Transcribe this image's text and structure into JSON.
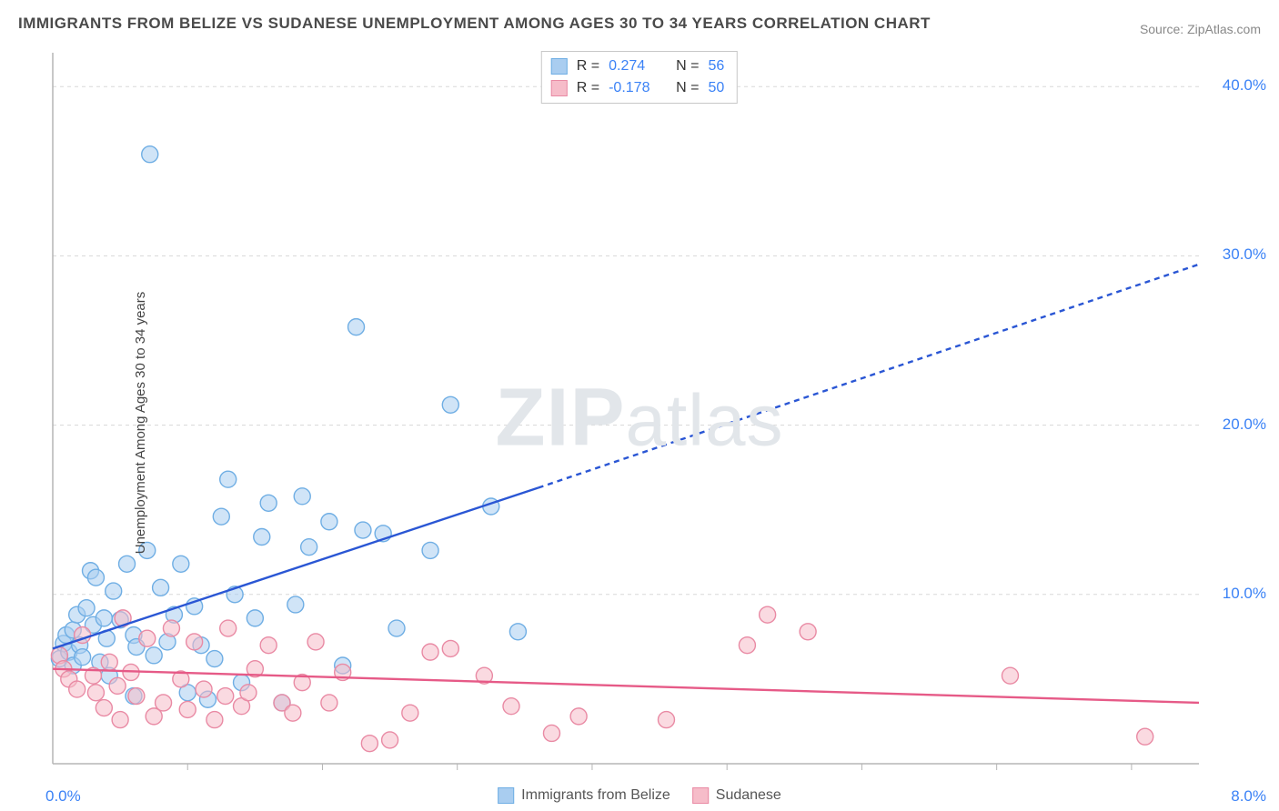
{
  "title": "IMMIGRANTS FROM BELIZE VS SUDANESE UNEMPLOYMENT AMONG AGES 30 TO 34 YEARS CORRELATION CHART",
  "source_label": "Source:",
  "source_name": "ZipAtlas.com",
  "watermark": "ZIPatlas",
  "ylabel": "Unemployment Among Ages 30 to 34 years",
  "chart": {
    "type": "scatter",
    "background_color": "#ffffff",
    "grid_color": "#d8d8d8",
    "axis_color": "#b5b5b5",
    "xlim": [
      0,
      8.5
    ],
    "ylim": [
      0,
      42
    ],
    "y_ticks": [
      10,
      20,
      30,
      40
    ],
    "y_tick_labels": [
      "10.0%",
      "20.0%",
      "30.0%",
      "40.0%"
    ],
    "x_minor_ticks": [
      1,
      2,
      3,
      4,
      5,
      6,
      7,
      8
    ],
    "bottom_left_label": "0.0%",
    "bottom_right_label": "8.0%",
    "marker_radius": 9,
    "marker_stroke_width": 1.4,
    "trend_line_width": 2.4,
    "trend_dash": "6,5"
  },
  "series": [
    {
      "name": "Immigrants from Belize",
      "fill_color": "#a9cdf0",
      "stroke_color": "#6faee4",
      "fill_opacity": 0.55,
      "R": "0.274",
      "N": "56",
      "trend_color": "#2a56d4",
      "trend_y0": 6.8,
      "trend_solid_until_x": 3.6,
      "trend_y_at_solid_end": 16.3,
      "trend_y_at_max": 29.5,
      "points": [
        [
          0.05,
          6.2
        ],
        [
          0.08,
          7.1
        ],
        [
          0.1,
          7.6
        ],
        [
          0.12,
          6.6
        ],
        [
          0.15,
          7.9
        ],
        [
          0.15,
          5.8
        ],
        [
          0.18,
          8.8
        ],
        [
          0.2,
          7.0
        ],
        [
          0.22,
          6.3
        ],
        [
          0.25,
          9.2
        ],
        [
          0.28,
          11.4
        ],
        [
          0.3,
          8.2
        ],
        [
          0.32,
          11.0
        ],
        [
          0.35,
          6.0
        ],
        [
          0.38,
          8.6
        ],
        [
          0.4,
          7.4
        ],
        [
          0.42,
          5.2
        ],
        [
          0.45,
          10.2
        ],
        [
          0.5,
          8.5
        ],
        [
          0.55,
          11.8
        ],
        [
          0.6,
          7.6
        ],
        [
          0.62,
          6.9
        ],
        [
          0.7,
          12.6
        ],
        [
          0.72,
          36.0
        ],
        [
          0.75,
          6.4
        ],
        [
          0.8,
          10.4
        ],
        [
          0.85,
          7.2
        ],
        [
          0.9,
          8.8
        ],
        [
          0.95,
          11.8
        ],
        [
          1.0,
          4.2
        ],
        [
          1.05,
          9.3
        ],
        [
          1.1,
          7.0
        ],
        [
          1.15,
          3.8
        ],
        [
          1.2,
          6.2
        ],
        [
          1.25,
          14.6
        ],
        [
          1.3,
          16.8
        ],
        [
          1.35,
          10.0
        ],
        [
          1.4,
          4.8
        ],
        [
          1.5,
          8.6
        ],
        [
          1.55,
          13.4
        ],
        [
          1.6,
          15.4
        ],
        [
          1.7,
          3.6
        ],
        [
          1.8,
          9.4
        ],
        [
          1.85,
          15.8
        ],
        [
          1.9,
          12.8
        ],
        [
          2.05,
          14.3
        ],
        [
          2.15,
          5.8
        ],
        [
          2.25,
          25.8
        ],
        [
          2.3,
          13.8
        ],
        [
          2.45,
          13.6
        ],
        [
          2.55,
          8.0
        ],
        [
          2.8,
          12.6
        ],
        [
          2.95,
          21.2
        ],
        [
          3.25,
          15.2
        ],
        [
          3.45,
          7.8
        ],
        [
          0.6,
          4.0
        ]
      ]
    },
    {
      "name": "Sudanese",
      "fill_color": "#f6bcc9",
      "stroke_color": "#e98aa4",
      "fill_opacity": 0.55,
      "R": "-0.178",
      "N": "50",
      "trend_color": "#e65a87",
      "trend_y0": 5.6,
      "trend_solid_until_x": 8.5,
      "trend_y_at_solid_end": 3.6,
      "trend_y_at_max": 3.6,
      "points": [
        [
          0.05,
          6.4
        ],
        [
          0.08,
          5.6
        ],
        [
          0.12,
          5.0
        ],
        [
          0.18,
          4.4
        ],
        [
          0.22,
          7.6
        ],
        [
          0.3,
          5.2
        ],
        [
          0.32,
          4.2
        ],
        [
          0.38,
          3.3
        ],
        [
          0.42,
          6.0
        ],
        [
          0.48,
          4.6
        ],
        [
          0.5,
          2.6
        ],
        [
          0.52,
          8.6
        ],
        [
          0.58,
          5.4
        ],
        [
          0.62,
          4.0
        ],
        [
          0.7,
          7.4
        ],
        [
          0.75,
          2.8
        ],
        [
          0.82,
          3.6
        ],
        [
          0.88,
          8.0
        ],
        [
          0.95,
          5.0
        ],
        [
          1.0,
          3.2
        ],
        [
          1.05,
          7.2
        ],
        [
          1.12,
          4.4
        ],
        [
          1.2,
          2.6
        ],
        [
          1.28,
          4.0
        ],
        [
          1.3,
          8.0
        ],
        [
          1.4,
          3.4
        ],
        [
          1.5,
          5.6
        ],
        [
          1.6,
          7.0
        ],
        [
          1.7,
          3.6
        ],
        [
          1.78,
          3.0
        ],
        [
          1.85,
          4.8
        ],
        [
          1.95,
          7.2
        ],
        [
          2.05,
          3.6
        ],
        [
          2.15,
          5.4
        ],
        [
          2.35,
          1.2
        ],
        [
          2.5,
          1.4
        ],
        [
          2.65,
          3.0
        ],
        [
          2.8,
          6.6
        ],
        [
          2.95,
          6.8
        ],
        [
          3.2,
          5.2
        ],
        [
          3.4,
          3.4
        ],
        [
          3.7,
          1.8
        ],
        [
          3.9,
          2.8
        ],
        [
          4.55,
          2.6
        ],
        [
          5.15,
          7.0
        ],
        [
          5.3,
          8.8
        ],
        [
          5.6,
          7.8
        ],
        [
          7.1,
          5.2
        ],
        [
          8.1,
          1.6
        ],
        [
          1.45,
          4.2
        ]
      ]
    }
  ],
  "stats_labels": {
    "R": "R =",
    "N": "N ="
  },
  "legend_bottom": [
    "Immigrants from Belize",
    "Sudanese"
  ]
}
